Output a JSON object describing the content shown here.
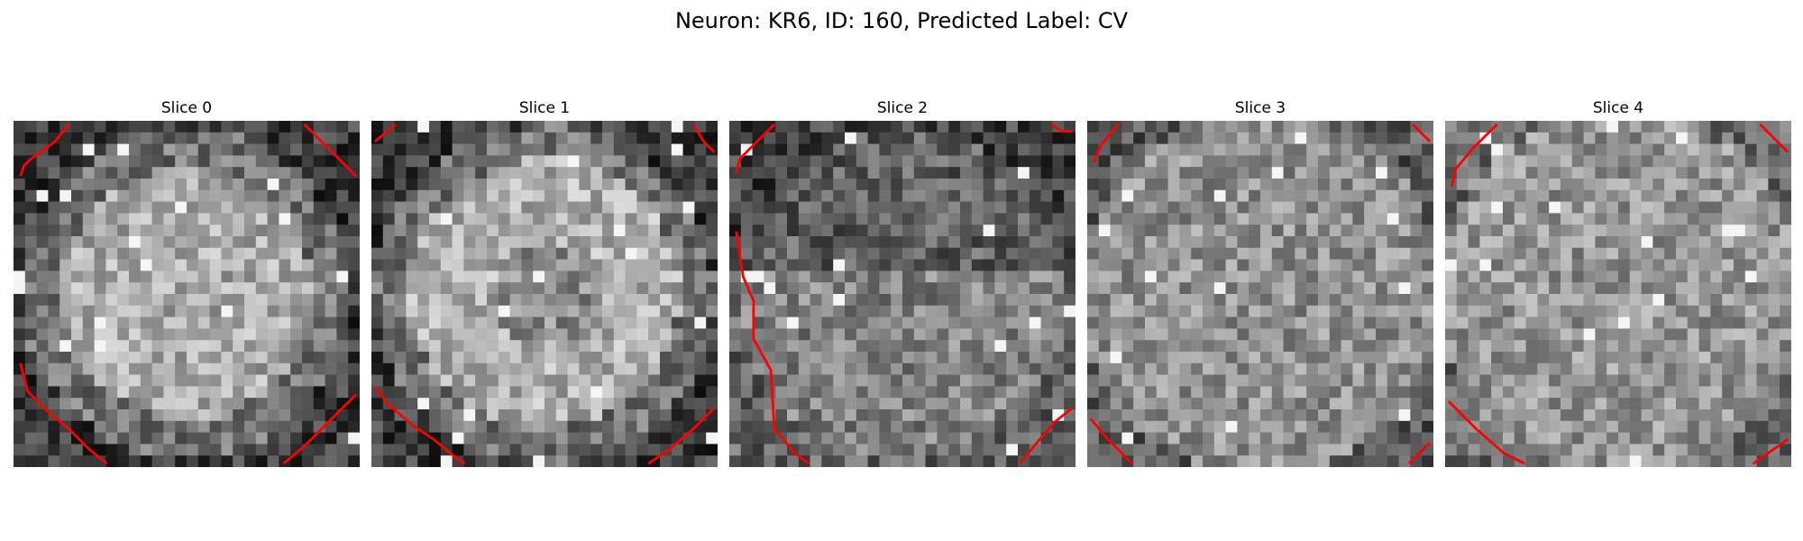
{
  "figure": {
    "title": "Neuron: KR6, ID: 160, Predicted Label: CV"
  },
  "colors": {
    "contour": "#ff0000",
    "background": "#ffffff"
  },
  "slices": [
    {
      "title": "Slice 0",
      "seed": 11,
      "contour_segments": [
        [
          [
            0.16,
            0.01
          ],
          [
            0.12,
            0.06
          ],
          [
            0.08,
            0.09
          ],
          [
            0.05,
            0.11
          ],
          [
            0.03,
            0.13
          ],
          [
            0.02,
            0.16
          ]
        ],
        [
          [
            0.84,
            0.01
          ],
          [
            0.92,
            0.09
          ],
          [
            0.99,
            0.16
          ]
        ],
        [
          [
            0.02,
            0.7
          ],
          [
            0.04,
            0.78
          ],
          [
            0.1,
            0.84
          ],
          [
            0.16,
            0.89
          ],
          [
            0.22,
            0.95
          ],
          [
            0.27,
            0.99
          ]
        ],
        [
          [
            0.78,
            0.99
          ],
          [
            0.84,
            0.94
          ],
          [
            0.9,
            0.88
          ],
          [
            0.96,
            0.82
          ],
          [
            0.99,
            0.79
          ]
        ]
      ]
    },
    {
      "title": "Slice 1",
      "seed": 23,
      "contour_segments": [
        [
          [
            0.07,
            0.01
          ],
          [
            0.01,
            0.06
          ]
        ],
        [
          [
            0.93,
            0.01
          ],
          [
            0.96,
            0.06
          ],
          [
            0.99,
            0.09
          ]
        ],
        [
          [
            0.01,
            0.77
          ],
          [
            0.05,
            0.82
          ],
          [
            0.12,
            0.88
          ],
          [
            0.18,
            0.92
          ],
          [
            0.24,
            0.97
          ],
          [
            0.27,
            0.99
          ]
        ],
        [
          [
            0.8,
            0.99
          ],
          [
            0.86,
            0.95
          ],
          [
            0.93,
            0.89
          ],
          [
            0.99,
            0.83
          ]
        ]
      ]
    },
    {
      "title": "Slice 2",
      "seed": 37,
      "contour_segments": [
        [
          [
            0.13,
            0.01
          ],
          [
            0.07,
            0.07
          ],
          [
            0.03,
            0.11
          ],
          [
            0.02,
            0.15
          ]
        ],
        [
          [
            0.93,
            0.01
          ],
          [
            0.96,
            0.03
          ],
          [
            0.99,
            0.03
          ]
        ],
        [
          [
            0.02,
            0.32
          ],
          [
            0.04,
            0.45
          ],
          [
            0.07,
            0.52
          ],
          [
            0.07,
            0.63
          ],
          [
            0.12,
            0.72
          ],
          [
            0.13,
            0.89
          ],
          [
            0.19,
            0.96
          ],
          [
            0.23,
            0.99
          ]
        ],
        [
          [
            0.84,
            0.99
          ],
          [
            0.88,
            0.94
          ],
          [
            0.94,
            0.87
          ],
          [
            0.99,
            0.83
          ]
        ]
      ]
    },
    {
      "title": "Slice 3",
      "seed": 51,
      "contour_segments": [
        [
          [
            0.09,
            0.01
          ],
          [
            0.04,
            0.07
          ],
          [
            0.02,
            0.12
          ]
        ],
        [
          [
            0.94,
            0.01
          ],
          [
            0.99,
            0.06
          ]
        ],
        [
          [
            0.01,
            0.86
          ],
          [
            0.06,
            0.92
          ],
          [
            0.13,
            0.99
          ]
        ],
        [
          [
            0.93,
            0.99
          ],
          [
            0.99,
            0.93
          ]
        ]
      ]
    },
    {
      "title": "Slice 4",
      "seed": 67,
      "contour_segments": [
        [
          [
            0.15,
            0.01
          ],
          [
            0.08,
            0.08
          ],
          [
            0.03,
            0.14
          ],
          [
            0.02,
            0.19
          ]
        ],
        [
          [
            0.91,
            0.01
          ],
          [
            0.99,
            0.09
          ]
        ],
        [
          [
            0.01,
            0.81
          ],
          [
            0.09,
            0.89
          ],
          [
            0.17,
            0.96
          ],
          [
            0.23,
            0.99
          ]
        ],
        [
          [
            0.89,
            0.99
          ],
          [
            0.99,
            0.92
          ]
        ]
      ]
    }
  ]
}
